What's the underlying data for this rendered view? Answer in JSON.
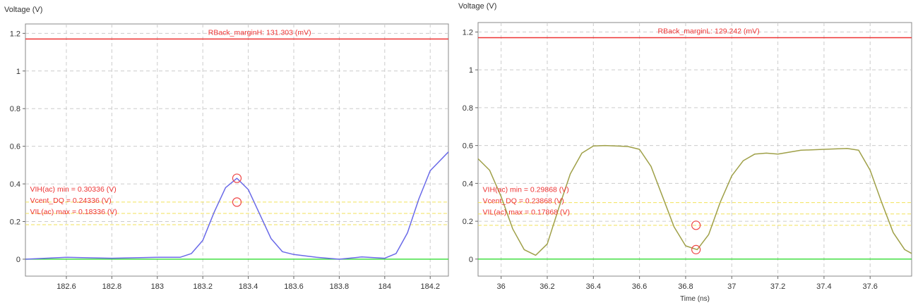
{
  "chart_data": [
    {
      "type": "line",
      "ylabel": "Voltage (V)",
      "xlabel": "",
      "xlim": [
        182.42,
        184.28
      ],
      "ylim": [
        -0.09,
        1.25
      ],
      "xticks": [
        182.6,
        182.8,
        183,
        183.2,
        183.4,
        183.6,
        183.8,
        184,
        184.2
      ],
      "xtick_labels": [
        "182.6",
        "182.8",
        "183",
        "183.2",
        "183.4",
        "183.6",
        "183.8",
        "184",
        "184.2"
      ],
      "yticks": [
        0,
        0.2,
        0.4,
        0.6,
        0.8,
        1,
        1.2
      ],
      "ytick_labels": [
        "0",
        "0.2",
        "0.4",
        "0.6",
        "0.8",
        "1",
        "1.2"
      ],
      "grid": true,
      "hlines": [
        {
          "y": 1.17,
          "color": "#ee3333"
        },
        {
          "y": 0.30336,
          "color": "#f2e25a",
          "dashed": true
        },
        {
          "y": 0.24336,
          "color": "#f2e25a",
          "dashed": true
        },
        {
          "y": 0.18336,
          "color": "#f2e25a",
          "dashed": true
        },
        {
          "y": 0.0,
          "color": "#33dd33"
        }
      ],
      "series": [
        {
          "color": "#6a6ae8",
          "x": [
            182.42,
            182.6,
            182.8,
            183.0,
            183.1,
            183.15,
            183.2,
            183.25,
            183.3,
            183.35,
            183.4,
            183.45,
            183.5,
            183.55,
            183.6,
            183.7,
            183.8,
            183.9,
            184.0,
            184.05,
            184.1,
            184.15,
            184.2,
            184.28
          ],
          "y": [
            0.0,
            0.01,
            0.005,
            0.01,
            0.01,
            0.03,
            0.1,
            0.25,
            0.38,
            0.43,
            0.37,
            0.24,
            0.11,
            0.04,
            0.025,
            0.01,
            0.0,
            0.012,
            0.005,
            0.03,
            0.14,
            0.32,
            0.47,
            0.57
          ]
        }
      ],
      "markers": [
        {
          "x": 183.35,
          "y": 0.43
        },
        {
          "x": 183.35,
          "y": 0.30336
        }
      ],
      "annotations": [
        {
          "text": "RBack_marginH: 131.303 (mV)",
          "x": 183.45,
          "y": 1.17,
          "color": "#ee3333"
        },
        {
          "text": "VIH(ac) min = 0.30336 (V)",
          "x": 182.44,
          "y": 0.36,
          "color": "#ee3333"
        },
        {
          "text": "Vcent_DQ = 0.24336 (V)",
          "x": 182.44,
          "y": 0.3,
          "color": "#ee3333"
        },
        {
          "text": "VIL(ac) max = 0.18336 (V)",
          "x": 182.44,
          "y": 0.24,
          "color": "#ee3333"
        }
      ]
    },
    {
      "type": "line",
      "ylabel": "Voltage (V)",
      "xlabel": "Time (ns)",
      "xlim": [
        35.9,
        37.78
      ],
      "ylim": [
        -0.09,
        1.25
      ],
      "xticks": [
        36,
        36.2,
        36.4,
        36.6,
        36.8,
        37,
        37.2,
        37.4,
        37.6
      ],
      "xtick_labels": [
        "36",
        "36.2",
        "36.4",
        "36.6",
        "36.8",
        "37",
        "37.2",
        "37.4",
        "37.6"
      ],
      "yticks": [
        0,
        0.2,
        0.4,
        0.6,
        0.8,
        1,
        1.2
      ],
      "ytick_labels": [
        "0",
        "0.2",
        "0.4",
        "0.6",
        "0.8",
        "1",
        "1.2"
      ],
      "grid": true,
      "hlines": [
        {
          "y": 1.17,
          "color": "#ee3333"
        },
        {
          "y": 0.29868,
          "color": "#f2e25a",
          "dashed": true
        },
        {
          "y": 0.23868,
          "color": "#f2e25a",
          "dashed": true
        },
        {
          "y": 0.17868,
          "color": "#f2e25a",
          "dashed": true
        },
        {
          "y": 0.0,
          "color": "#33dd33"
        }
      ],
      "series": [
        {
          "color": "#9fa048",
          "x": [
            35.9,
            35.95,
            36.0,
            36.05,
            36.1,
            36.15,
            36.2,
            36.25,
            36.3,
            36.35,
            36.4,
            36.45,
            36.5,
            36.55,
            36.6,
            36.65,
            36.7,
            36.75,
            36.8,
            36.85,
            36.9,
            36.95,
            37.0,
            37.05,
            37.1,
            37.15,
            37.2,
            37.3,
            37.4,
            37.5,
            37.55,
            37.6,
            37.65,
            37.7,
            37.75,
            37.78
          ],
          "y": [
            0.53,
            0.47,
            0.33,
            0.16,
            0.05,
            0.02,
            0.08,
            0.27,
            0.45,
            0.56,
            0.598,
            0.6,
            0.598,
            0.595,
            0.58,
            0.49,
            0.33,
            0.17,
            0.07,
            0.05,
            0.13,
            0.3,
            0.44,
            0.52,
            0.555,
            0.56,
            0.555,
            0.575,
            0.58,
            0.585,
            0.575,
            0.47,
            0.3,
            0.14,
            0.05,
            0.03
          ]
        }
      ],
      "markers": [
        {
          "x": 36.845,
          "y": 0.17868
        },
        {
          "x": 36.845,
          "y": 0.05
        }
      ],
      "annotations": [
        {
          "text": "RBack_marginL: 129.242 (mV)",
          "x": 36.9,
          "y": 1.17,
          "color": "#ee3333"
        },
        {
          "text": "VIH(ac) min = 0.29868 (V)",
          "x": 35.92,
          "y": 0.355,
          "color": "#ee3333"
        },
        {
          "text": "Vcent_DQ = 0.23868 (V)",
          "x": 35.92,
          "y": 0.295,
          "color": "#ee3333"
        },
        {
          "text": "VIL(ac) max = 0.17868 (V)",
          "x": 35.92,
          "y": 0.235,
          "color": "#ee3333"
        }
      ]
    }
  ]
}
